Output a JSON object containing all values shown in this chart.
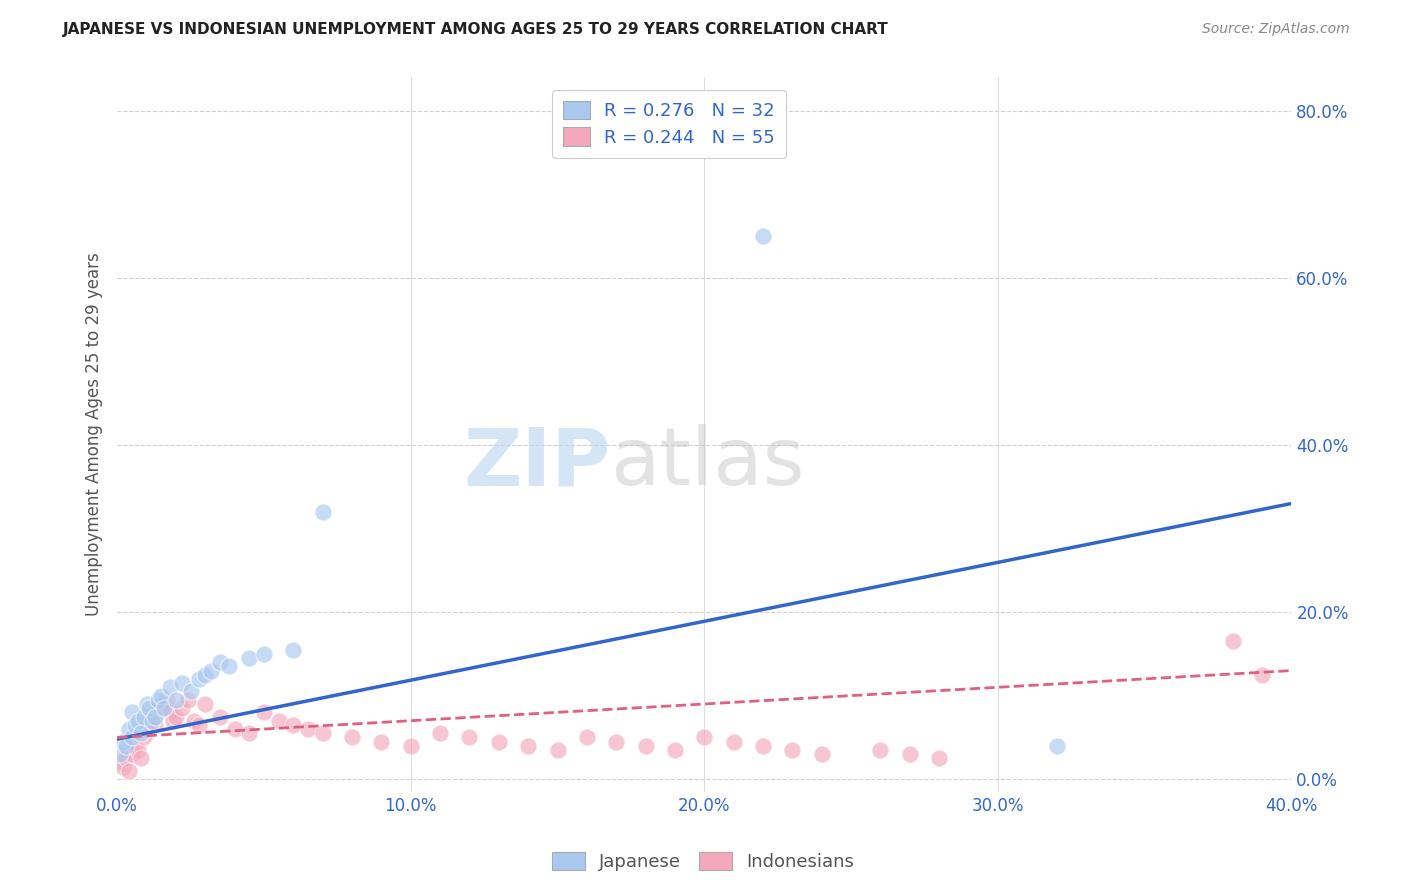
{
  "title": "JAPANESE VS INDONESIAN UNEMPLOYMENT AMONG AGES 25 TO 29 YEARS CORRELATION CHART",
  "source": "Source: ZipAtlas.com",
  "ylabel_label": "Unemployment Among Ages 25 to 29 years",
  "xlim": [
    0.0,
    0.4
  ],
  "ylim": [
    -0.015,
    0.84
  ],
  "japanese_color": "#a8c8f0",
  "indonesian_color": "#f5a8bc",
  "japanese_line_color": "#3366cc",
  "indonesian_line_color": "#e06080",
  "R_japanese": 0.276,
  "N_japanese": 32,
  "R_indonesian": 0.244,
  "N_indonesian": 55,
  "japanese_x": [
    0.001,
    0.002,
    0.003,
    0.004,
    0.005,
    0.005,
    0.006,
    0.007,
    0.008,
    0.009,
    0.01,
    0.011,
    0.012,
    0.013,
    0.014,
    0.015,
    0.016,
    0.018,
    0.02,
    0.022,
    0.025,
    0.028,
    0.03,
    0.032,
    0.035,
    0.038,
    0.045,
    0.05,
    0.06,
    0.07,
    0.22,
    0.32
  ],
  "japanese_y": [
    0.03,
    0.045,
    0.04,
    0.06,
    0.05,
    0.08,
    0.065,
    0.07,
    0.055,
    0.075,
    0.09,
    0.085,
    0.07,
    0.075,
    0.095,
    0.1,
    0.085,
    0.11,
    0.095,
    0.115,
    0.105,
    0.12,
    0.125,
    0.13,
    0.14,
    0.135,
    0.145,
    0.15,
    0.155,
    0.32,
    0.65,
    0.04
  ],
  "indonesian_x": [
    0.001,
    0.002,
    0.003,
    0.004,
    0.005,
    0.006,
    0.007,
    0.008,
    0.009,
    0.01,
    0.011,
    0.012,
    0.013,
    0.014,
    0.015,
    0.016,
    0.017,
    0.018,
    0.019,
    0.02,
    0.022,
    0.024,
    0.026,
    0.028,
    0.03,
    0.035,
    0.04,
    0.045,
    0.05,
    0.055,
    0.06,
    0.065,
    0.07,
    0.08,
    0.09,
    0.1,
    0.11,
    0.12,
    0.13,
    0.14,
    0.15,
    0.16,
    0.17,
    0.18,
    0.19,
    0.2,
    0.21,
    0.22,
    0.23,
    0.24,
    0.26,
    0.27,
    0.28,
    0.38,
    0.39
  ],
  "indonesian_y": [
    0.02,
    0.015,
    0.025,
    0.01,
    0.03,
    0.04,
    0.035,
    0.025,
    0.05,
    0.06,
    0.07,
    0.075,
    0.065,
    0.08,
    0.085,
    0.09,
    0.095,
    0.08,
    0.07,
    0.075,
    0.085,
    0.095,
    0.07,
    0.065,
    0.09,
    0.075,
    0.06,
    0.055,
    0.08,
    0.07,
    0.065,
    0.06,
    0.055,
    0.05,
    0.045,
    0.04,
    0.055,
    0.05,
    0.045,
    0.04,
    0.035,
    0.05,
    0.045,
    0.04,
    0.035,
    0.05,
    0.045,
    0.04,
    0.035,
    0.03,
    0.035,
    0.03,
    0.025,
    0.165,
    0.125
  ],
  "regression_japanese": [
    0.048,
    0.33
  ],
  "regression_indonesian": [
    0.05,
    0.13
  ],
  "watermark_zip": "ZIP",
  "watermark_atlas": "atlas",
  "background_color": "#ffffff",
  "grid_color": "#d0d0d0"
}
